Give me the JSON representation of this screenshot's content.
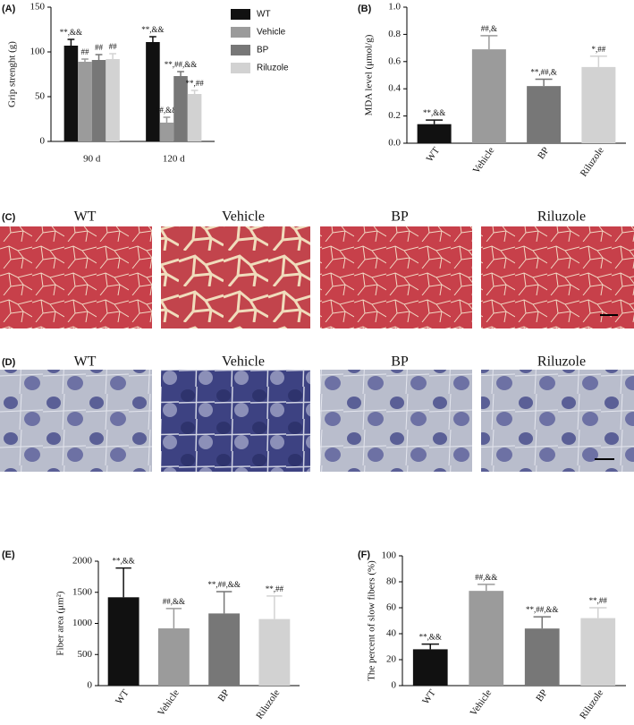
{
  "chart_data": [
    {
      "type": "bar",
      "panel_label": "(A)",
      "ylabel": "Grip strenght (g)",
      "categories": [
        "90 d",
        "120 d"
      ],
      "series": [
        {
          "name": "WT",
          "color": "#111111",
          "values": [
            107,
            111
          ],
          "errors": [
            7,
            6
          ],
          "annotations": [
            "**,&&",
            "**,&&"
          ]
        },
        {
          "name": "Vehicle",
          "color": "#9b9b9b",
          "values": [
            89,
            21
          ],
          "errors": [
            3,
            6
          ],
          "annotations": [
            "##",
            "##,&&"
          ]
        },
        {
          "name": "BP",
          "color": "#777777",
          "values": [
            91,
            73
          ],
          "errors": [
            6,
            5
          ],
          "annotations": [
            "##",
            "**,##,&&"
          ]
        },
        {
          "name": "Riluzole",
          "color": "#d2d2d2",
          "values": [
            92,
            53
          ],
          "errors": [
            6,
            4
          ],
          "annotations": [
            "##",
            "**,##"
          ]
        }
      ],
      "ylim": [
        0,
        150
      ],
      "yticks": [
        0,
        50,
        100,
        150
      ],
      "legend": "right"
    },
    {
      "type": "bar",
      "panel_label": "(B)",
      "ylabel": "MDA level (μmol/g)",
      "categories": [
        "WT",
        "Vehicle",
        "BP",
        "Riluzole"
      ],
      "values": [
        0.14,
        0.69,
        0.42,
        0.56
      ],
      "errors": [
        0.03,
        0.1,
        0.05,
        0.08
      ],
      "annotations": [
        "**,&&",
        "##,&",
        "**,##,&",
        "*,##"
      ],
      "colors": [
        "#111111",
        "#9b9b9b",
        "#777777",
        "#d2d2d2"
      ],
      "ylim": [
        0,
        1
      ],
      "yticks": [
        {
          "value": 0,
          "label": "0.0"
        },
        0.2,
        0.4,
        0.6,
        0.8,
        {
          "value": 1,
          "label": "1.0"
        }
      ]
    },
    {
      "type": "bar",
      "panel_label": "(E)",
      "ylabel": "Fiber area (μm²)",
      "categories": [
        "WT",
        "Vehicle",
        "BP",
        "Riluzole"
      ],
      "values": [
        1420,
        920,
        1160,
        1070
      ],
      "errors": [
        470,
        320,
        350,
        370
      ],
      "annotations": [
        "**,&&",
        "##,&&",
        "**,##,&&",
        "**,##"
      ],
      "colors": [
        "#111111",
        "#9b9b9b",
        "#777777",
        "#d2d2d2"
      ],
      "ylim": [
        0,
        2000
      ],
      "yticks": [
        0,
        500,
        1000,
        1500,
        2000
      ]
    },
    {
      "type": "bar",
      "panel_label": "(F)",
      "ylabel": "The percent of slow fibers (%)",
      "categories": [
        "WT",
        "Vehicle",
        "BP",
        "Riluzole"
      ],
      "values": [
        28,
        73,
        44,
        52
      ],
      "errors": [
        4,
        5,
        9,
        8
      ],
      "annotations": [
        "**,&&",
        "##,&&",
        "**,##,&&",
        "**,##"
      ],
      "colors": [
        "#111111",
        "#9b9b9b",
        "#777777",
        "#d2d2d2"
      ],
      "ylim": [
        0,
        100
      ],
      "yticks": [
        0,
        20,
        40,
        60,
        80,
        100
      ]
    }
  ],
  "micrographs": [
    {
      "panel_label": "(C)",
      "captions": [
        "WT",
        "Vehicle",
        "BP",
        "Riluzole"
      ]
    },
    {
      "panel_label": "(D)",
      "captions": [
        "WT",
        "Vehicle",
        "BP",
        "Riluzole"
      ]
    }
  ]
}
